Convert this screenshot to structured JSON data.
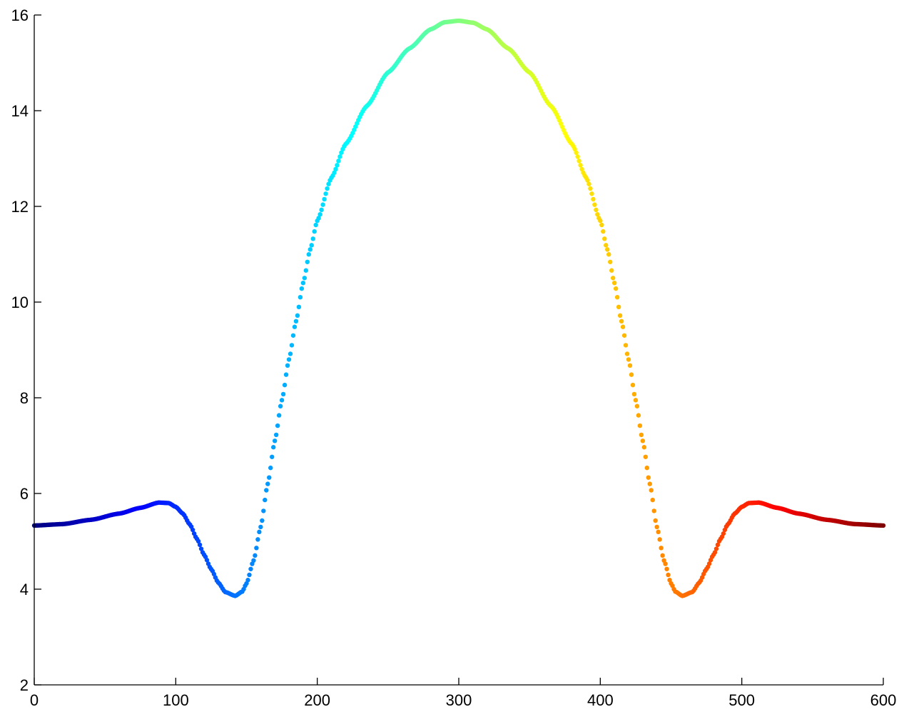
{
  "chart_data": {
    "type": "scatter",
    "title": "",
    "xlabel": "",
    "ylabel": "",
    "xlim": [
      0,
      600
    ],
    "ylim": [
      2,
      16
    ],
    "x_ticks": [
      0,
      100,
      200,
      300,
      400,
      500,
      600
    ],
    "y_ticks": [
      2,
      4,
      6,
      8,
      10,
      12,
      14,
      16
    ],
    "x_tick_labels": [
      "0",
      "100",
      "200",
      "300",
      "400",
      "500",
      "600"
    ],
    "y_tick_labels": [
      "2",
      "4",
      "6",
      "8",
      "10",
      "12",
      "14",
      "16"
    ],
    "grid": false,
    "box": false,
    "colormap": "jet",
    "series": [
      {
        "x_start": 0,
        "x_end": 600,
        "x_step": 1,
        "curve_samples": [
          [
            0,
            5.33
          ],
          [
            20,
            5.36
          ],
          [
            40,
            5.45
          ],
          [
            60,
            5.58
          ],
          [
            75,
            5.7
          ],
          [
            88,
            5.81
          ],
          [
            95,
            5.8
          ],
          [
            100,
            5.72
          ],
          [
            105,
            5.58
          ],
          [
            110,
            5.35
          ],
          [
            115,
            5.05
          ],
          [
            120,
            4.72
          ],
          [
            125,
            4.42
          ],
          [
            130,
            4.14
          ],
          [
            135,
            3.94
          ],
          [
            142,
            3.86
          ],
          [
            147,
            3.95
          ],
          [
            150,
            4.12
          ],
          [
            155,
            4.6
          ],
          [
            160,
            5.3
          ],
          [
            165,
            6.2
          ],
          [
            170,
            7.1
          ],
          [
            175,
            7.95
          ],
          [
            180,
            8.8
          ],
          [
            185,
            9.6
          ],
          [
            190,
            10.4
          ],
          [
            195,
            11.1
          ],
          [
            200,
            11.7
          ],
          [
            210,
            12.6
          ],
          [
            220,
            13.3
          ],
          [
            235,
            14.1
          ],
          [
            250,
            14.8
          ],
          [
            265,
            15.3
          ],
          [
            280,
            15.7
          ],
          [
            290,
            15.85
          ],
          [
            300,
            15.88
          ],
          [
            310,
            15.84
          ],
          [
            320,
            15.7
          ],
          [
            335,
            15.3
          ],
          [
            350,
            14.8
          ],
          [
            365,
            14.1
          ],
          [
            380,
            13.3
          ],
          [
            390,
            12.6
          ],
          [
            400,
            11.7
          ],
          [
            405,
            11.1
          ],
          [
            410,
            10.4
          ],
          [
            415,
            9.6
          ],
          [
            420,
            8.8
          ],
          [
            425,
            7.95
          ],
          [
            430,
            7.1
          ],
          [
            435,
            6.2
          ],
          [
            440,
            5.3
          ],
          [
            445,
            4.6
          ],
          [
            450,
            4.12
          ],
          [
            453,
            3.95
          ],
          [
            458,
            3.86
          ],
          [
            465,
            3.94
          ],
          [
            470,
            4.14
          ],
          [
            475,
            4.42
          ],
          [
            480,
            4.72
          ],
          [
            485,
            5.05
          ],
          [
            490,
            5.35
          ],
          [
            495,
            5.58
          ],
          [
            500,
            5.72
          ],
          [
            505,
            5.8
          ],
          [
            512,
            5.81
          ],
          [
            525,
            5.7
          ],
          [
            540,
            5.58
          ],
          [
            560,
            5.45
          ],
          [
            580,
            5.36
          ],
          [
            600,
            5.33
          ]
        ]
      }
    ]
  }
}
